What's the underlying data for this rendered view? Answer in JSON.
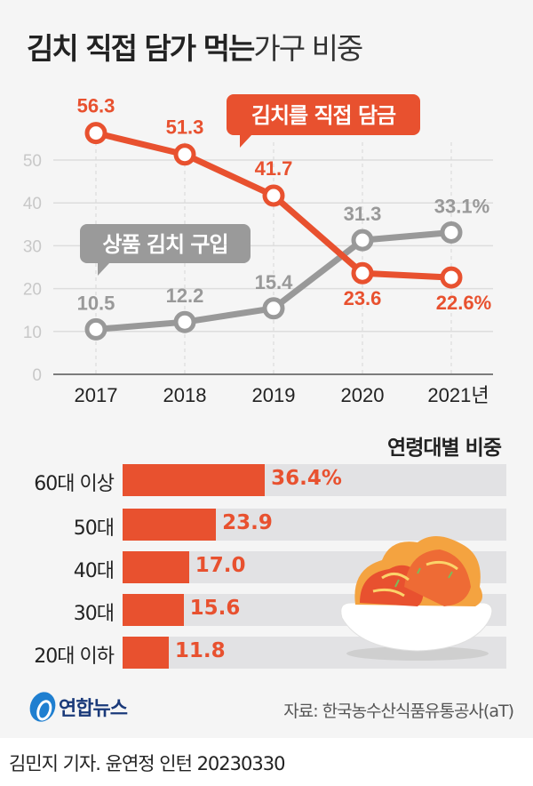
{
  "title": {
    "bold": "김치 직접 담가 먹는",
    "light": "가구 비중"
  },
  "colors": {
    "orange": "#e8512f",
    "gray": "#999999",
    "grid": "#dddddd",
    "axis_text": "#c8c8c8"
  },
  "chart_data": [
    {
      "type": "line",
      "title": "김치 직접 담가 먹는 가구 비중",
      "categories": [
        "2017",
        "2018",
        "2019",
        "2020",
        "2021년"
      ],
      "ylim": [
        0,
        50
      ],
      "yticks": [
        "0",
        "10",
        "20",
        "30",
        "40",
        "50"
      ],
      "grid": true,
      "series": [
        {
          "name": "김치를 직접 담금",
          "values": [
            56.3,
            51.3,
            41.7,
            23.6,
            22.6
          ],
          "labels": [
            "56.3",
            "51.3",
            "41.7",
            "23.6",
            "22.6%"
          ]
        },
        {
          "name": "상품 김치 구입",
          "values": [
            10.5,
            12.2,
            15.4,
            31.3,
            33.1
          ],
          "labels": [
            "10.5",
            "12.2",
            "15.4",
            "31.3",
            "33.1%"
          ]
        }
      ]
    },
    {
      "type": "bar",
      "title": "연령대별 비중",
      "categories": [
        "60대 이상",
        "50대",
        "40대",
        "30대",
        "20대 이하"
      ],
      "values": [
        36.4,
        23.9,
        17.0,
        15.6,
        11.8
      ],
      "labels": [
        "36.4%",
        "23.9",
        "17.0",
        "15.6",
        "11.8"
      ]
    }
  ],
  "source": "자료: 한국농수산식품유통공사(aT)",
  "logo": "연합뉴스",
  "credit": "김민지 기자. 윤연정 인턴  20230330"
}
